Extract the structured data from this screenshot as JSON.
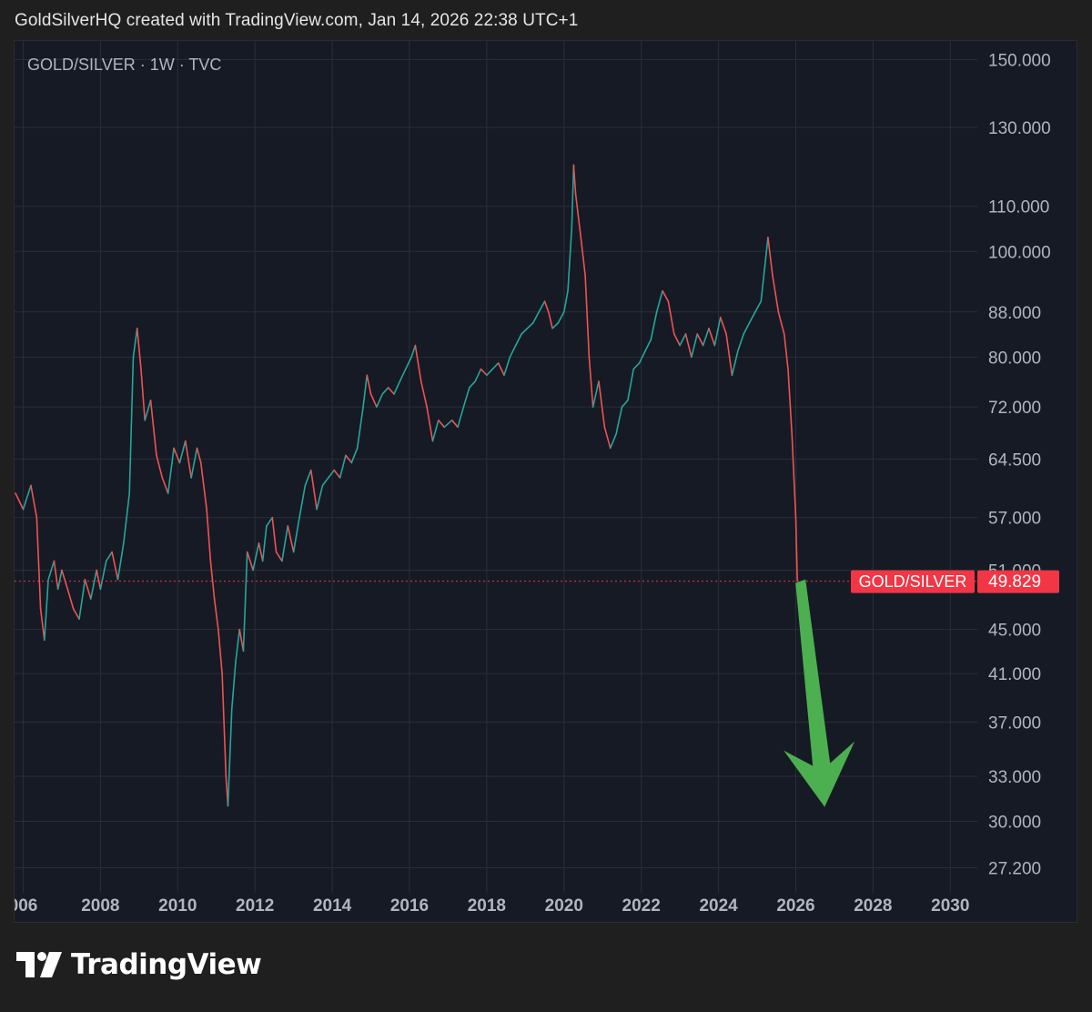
{
  "header": {
    "text": "GoldSilverHQ created with TradingView.com, Jan 14, 2026 22:38 UTC+1"
  },
  "legend": {
    "text": "GOLD/SILVER · 1W · TVC"
  },
  "footer": {
    "brand": "TradingView"
  },
  "colors": {
    "background": "#161a25",
    "grid": "#2a2e39",
    "axis_text": "#b2b5be",
    "candle_up": "#26a69a",
    "candle_down": "#ef5350",
    "price_tag": "#f23645",
    "arrow": "#4caf50"
  },
  "chart_data": {
    "type": "line",
    "scale": "log",
    "timeframe": "1W",
    "symbol": "GOLD/SILVER",
    "source": "TVC",
    "y_ticks": [
      "150.000",
      "130.000",
      "110.000",
      "100.000",
      "88.000",
      "80.000",
      "72.000",
      "64.500",
      "57.000",
      "51.000",
      "45.000",
      "41.000",
      "37.000",
      "33.000",
      "30.000",
      "27.200"
    ],
    "x_ticks": [
      "006",
      "2008",
      "2010",
      "2012",
      "2014",
      "2016",
      "2018",
      "2020",
      "2022",
      "2024",
      "2026",
      "2028",
      "2030"
    ],
    "current_label": "GOLD/SILVER",
    "current_value": "49.829",
    "grid": true,
    "series": [
      {
        "values": [
          [
            2005.8,
            60
          ],
          [
            2006.0,
            58
          ],
          [
            2006.2,
            61
          ],
          [
            2006.35,
            57
          ],
          [
            2006.45,
            47
          ],
          [
            2006.55,
            44
          ],
          [
            2006.65,
            50
          ],
          [
            2006.8,
            52
          ],
          [
            2006.9,
            49
          ],
          [
            2007.0,
            51
          ],
          [
            2007.15,
            49
          ],
          [
            2007.3,
            47
          ],
          [
            2007.45,
            46
          ],
          [
            2007.6,
            50
          ],
          [
            2007.75,
            48
          ],
          [
            2007.9,
            51
          ],
          [
            2008.0,
            49
          ],
          [
            2008.15,
            52
          ],
          [
            2008.3,
            53
          ],
          [
            2008.45,
            50
          ],
          [
            2008.6,
            54
          ],
          [
            2008.75,
            60
          ],
          [
            2008.85,
            80
          ],
          [
            2008.95,
            85
          ],
          [
            2009.05,
            78
          ],
          [
            2009.15,
            70
          ],
          [
            2009.3,
            73
          ],
          [
            2009.45,
            65
          ],
          [
            2009.6,
            62
          ],
          [
            2009.75,
            60
          ],
          [
            2009.9,
            66
          ],
          [
            2010.05,
            64
          ],
          [
            2010.2,
            67
          ],
          [
            2010.35,
            62
          ],
          [
            2010.5,
            66
          ],
          [
            2010.6,
            64
          ],
          [
            2010.75,
            58
          ],
          [
            2010.85,
            52
          ],
          [
            2010.95,
            48
          ],
          [
            2011.05,
            45
          ],
          [
            2011.15,
            41
          ],
          [
            2011.25,
            33
          ],
          [
            2011.3,
            31
          ],
          [
            2011.4,
            38
          ],
          [
            2011.5,
            42
          ],
          [
            2011.6,
            45
          ],
          [
            2011.7,
            43
          ],
          [
            2011.8,
            53
          ],
          [
            2011.95,
            51
          ],
          [
            2012.1,
            54
          ],
          [
            2012.2,
            52
          ],
          [
            2012.3,
            56
          ],
          [
            2012.45,
            57
          ],
          [
            2012.55,
            53
          ],
          [
            2012.7,
            52
          ],
          [
            2012.85,
            56
          ],
          [
            2013.0,
            53
          ],
          [
            2013.15,
            57
          ],
          [
            2013.3,
            61
          ],
          [
            2013.45,
            63
          ],
          [
            2013.6,
            58
          ],
          [
            2013.75,
            61
          ],
          [
            2013.9,
            62
          ],
          [
            2014.05,
            63
          ],
          [
            2014.2,
            62
          ],
          [
            2014.35,
            65
          ],
          [
            2014.5,
            64
          ],
          [
            2014.65,
            66
          ],
          [
            2014.8,
            72
          ],
          [
            2014.9,
            77
          ],
          [
            2015.0,
            74
          ],
          [
            2015.15,
            72
          ],
          [
            2015.3,
            74
          ],
          [
            2015.45,
            75
          ],
          [
            2015.6,
            74
          ],
          [
            2015.75,
            76
          ],
          [
            2015.9,
            78
          ],
          [
            2016.05,
            80
          ],
          [
            2016.15,
            82
          ],
          [
            2016.3,
            76
          ],
          [
            2016.45,
            72
          ],
          [
            2016.6,
            67
          ],
          [
            2016.75,
            70
          ],
          [
            2016.9,
            69
          ],
          [
            2017.1,
            70
          ],
          [
            2017.25,
            69
          ],
          [
            2017.4,
            72
          ],
          [
            2017.55,
            75
          ],
          [
            2017.7,
            76
          ],
          [
            2017.85,
            78
          ],
          [
            2018.0,
            77
          ],
          [
            2018.15,
            78
          ],
          [
            2018.3,
            79
          ],
          [
            2018.45,
            77
          ],
          [
            2018.6,
            80
          ],
          [
            2018.75,
            82
          ],
          [
            2018.9,
            84
          ],
          [
            2019.05,
            85
          ],
          [
            2019.2,
            86
          ],
          [
            2019.35,
            88
          ],
          [
            2019.5,
            90
          ],
          [
            2019.6,
            88
          ],
          [
            2019.7,
            85
          ],
          [
            2019.85,
            86
          ],
          [
            2020.0,
            88
          ],
          [
            2020.1,
            92
          ],
          [
            2020.2,
            105
          ],
          [
            2020.25,
            120
          ],
          [
            2020.3,
            113
          ],
          [
            2020.45,
            102
          ],
          [
            2020.55,
            95
          ],
          [
            2020.65,
            80
          ],
          [
            2020.75,
            72
          ],
          [
            2020.9,
            76
          ],
          [
            2021.05,
            69
          ],
          [
            2021.2,
            66
          ],
          [
            2021.35,
            68
          ],
          [
            2021.5,
            72
          ],
          [
            2021.65,
            73
          ],
          [
            2021.8,
            78
          ],
          [
            2021.95,
            79
          ],
          [
            2022.1,
            81
          ],
          [
            2022.25,
            83
          ],
          [
            2022.4,
            88
          ],
          [
            2022.55,
            92
          ],
          [
            2022.7,
            90
          ],
          [
            2022.85,
            84
          ],
          [
            2023.0,
            82
          ],
          [
            2023.15,
            84
          ],
          [
            2023.3,
            80
          ],
          [
            2023.45,
            84
          ],
          [
            2023.6,
            82
          ],
          [
            2023.75,
            85
          ],
          [
            2023.9,
            82
          ],
          [
            2024.05,
            87
          ],
          [
            2024.2,
            84
          ],
          [
            2024.35,
            77
          ],
          [
            2024.5,
            81
          ],
          [
            2024.65,
            84
          ],
          [
            2024.8,
            86
          ],
          [
            2024.95,
            88
          ],
          [
            2025.1,
            90
          ],
          [
            2025.2,
            97
          ],
          [
            2025.28,
            103
          ],
          [
            2025.4,
            95
          ],
          [
            2025.55,
            88
          ],
          [
            2025.7,
            84
          ],
          [
            2025.8,
            78
          ],
          [
            2025.9,
            68
          ],
          [
            2026.0,
            57
          ],
          [
            2026.04,
            49.829
          ]
        ]
      }
    ],
    "ylim": [
      26.2,
      156
    ],
    "xlim": [
      2005.8,
      2030.7
    ]
  }
}
